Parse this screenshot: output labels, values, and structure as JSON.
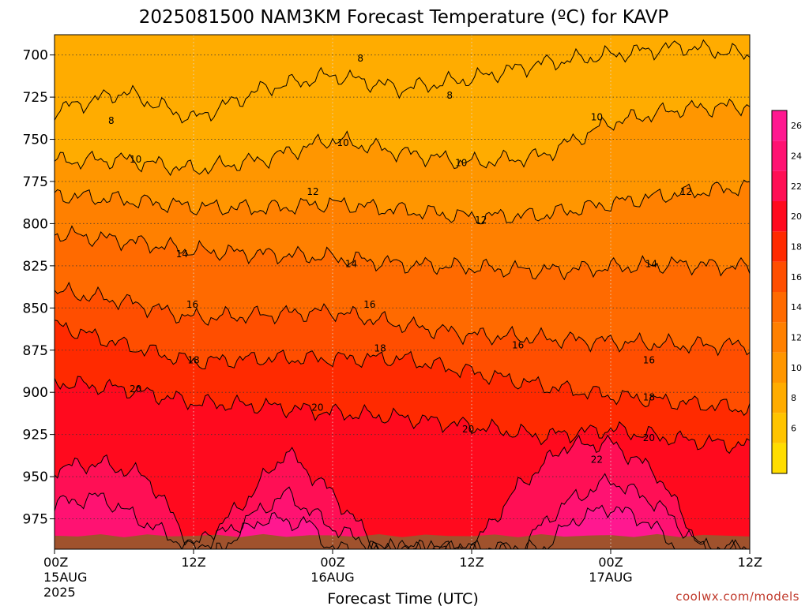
{
  "title": "2025081500 NAM3KM Forecast Temperature (ºC) for KAVP",
  "xlabel": "Forecast Time (UTC)",
  "credit": "coolwx.com/models",
  "chart_data": {
    "type": "heatmap",
    "title": "2025081500 NAM3KM Forecast Temperature (ºC) for KAVP",
    "xlabel": "Forecast Time (UTC)",
    "ylabel": "",
    "x_ticks": [
      {
        "hour": 0,
        "line1": "00Z",
        "line2": "15AUG",
        "line3": "2025"
      },
      {
        "hour": 12,
        "line1": "12Z",
        "line2": "",
        "line3": ""
      },
      {
        "hour": 24,
        "line1": "00Z",
        "line2": "16AUG",
        "line3": ""
      },
      {
        "hour": 36,
        "line1": "12Z",
        "line2": "",
        "line3": ""
      },
      {
        "hour": 48,
        "line1": "00Z",
        "line2": "17AUG",
        "line3": ""
      },
      {
        "hour": 60,
        "line1": "12Z",
        "line2": "",
        "line3": ""
      }
    ],
    "xlim": [
      0,
      60
    ],
    "y_ticks": [
      700,
      725,
      750,
      775,
      800,
      825,
      850,
      875,
      900,
      925,
      950,
      975
    ],
    "ylim_hpa": [
      688,
      993
    ],
    "grid": true,
    "colorbar": {
      "levels": [
        4,
        6,
        8,
        10,
        12,
        14,
        16,
        18,
        20,
        22,
        24,
        26,
        28
      ],
      "tick_labels": [
        "6",
        "8",
        "10",
        "12",
        "14",
        "16",
        "18",
        "20",
        "22",
        "24",
        "26"
      ],
      "colors": [
        "#ffdd00",
        "#ffc400",
        "#ffac00",
        "#ff9600",
        "#ff8000",
        "#ff6a00",
        "#ff4e00",
        "#ff2a00",
        "#ff0a1e",
        "#ff0f55",
        "#ff1272",
        "#ff1890"
      ],
      "placement": "right"
    },
    "isotherms_hpa": [
      {
        "temp": 8,
        "hours": [
          0,
          6,
          12,
          18,
          24,
          30,
          36,
          42,
          48,
          54,
          60
        ],
        "p": [
          733,
          722,
          738,
          720,
          712,
          720,
          714,
          705,
          700,
          695,
          700
        ]
      },
      {
        "temp": 10,
        "hours": [
          0,
          6,
          12,
          18,
          24,
          30,
          36,
          42,
          48,
          54,
          60
        ],
        "p": [
          763,
          762,
          768,
          762,
          750,
          758,
          764,
          760,
          740,
          732,
          730
        ]
      },
      {
        "temp": 12,
        "hours": [
          0,
          6,
          12,
          18,
          24,
          30,
          36,
          42,
          48,
          54,
          60
        ],
        "p": [
          783,
          786,
          790,
          791,
          788,
          792,
          796,
          795,
          788,
          782,
          778
        ]
      },
      {
        "temp": 14,
        "hours": [
          0,
          6,
          12,
          18,
          24,
          30,
          36,
          42,
          48,
          54,
          60
        ],
        "p": [
          806,
          810,
          816,
          818,
          820,
          824,
          826,
          828,
          826,
          824,
          826
        ]
      },
      {
        "temp": 16,
        "hours": [
          0,
          6,
          12,
          18,
          24,
          30,
          36,
          42,
          48,
          54,
          60
        ],
        "p": [
          840,
          846,
          856,
          854,
          852,
          860,
          866,
          868,
          870,
          872,
          872
        ]
      },
      {
        "temp": 18,
        "hours": [
          0,
          6,
          12,
          18,
          24,
          30,
          36,
          42,
          48,
          54,
          60
        ],
        "p": [
          860,
          872,
          882,
          880,
          880,
          880,
          888,
          896,
          902,
          906,
          910
        ]
      },
      {
        "temp": 20,
        "hours": [
          0,
          6,
          12,
          18,
          24,
          30,
          36,
          42,
          48,
          54,
          60
        ],
        "p": [
          894,
          898,
          906,
          908,
          912,
          915,
          920,
          926,
          922,
          928,
          932
        ]
      },
      {
        "temp": 22,
        "hours": [
          0,
          4,
          8,
          12,
          16,
          20,
          24,
          28,
          32,
          36,
          40,
          44,
          48,
          52,
          56,
          60
        ],
        "p": [
          945,
          942,
          950,
          992,
          968,
          935,
          960,
          993,
          993,
          993,
          956,
          932,
          930,
          948,
          993,
          993
        ]
      },
      {
        "temp": 24,
        "hours": [
          0,
          4,
          8,
          12,
          16,
          20,
          24,
          28,
          32,
          40,
          44,
          48,
          52,
          56,
          60
        ],
        "p": [
          966,
          962,
          978,
          993,
          978,
          960,
          980,
          993,
          993,
          993,
          966,
          952,
          966,
          993,
          993
        ]
      },
      {
        "temp": 26,
        "hours": [
          14,
          18,
          22,
          24,
          42,
          45,
          48,
          51,
          54
        ],
        "p": [
          993,
          975,
          978,
          993,
          993,
          975,
          968,
          976,
          993
        ]
      }
    ],
    "contour_labels": [
      {
        "text": "8",
        "hour": 4.9,
        "p": 739
      },
      {
        "text": "8",
        "hour": 26.4,
        "p": 702
      },
      {
        "text": "8",
        "hour": 34.1,
        "p": 724
      },
      {
        "text": "10",
        "hour": 7.0,
        "p": 762
      },
      {
        "text": "10",
        "hour": 24.9,
        "p": 752
      },
      {
        "text": "10",
        "hour": 35.1,
        "p": 764
      },
      {
        "text": "10",
        "hour": 46.8,
        "p": 737
      },
      {
        "text": "12",
        "hour": 22.3,
        "p": 781
      },
      {
        "text": "12",
        "hour": 36.8,
        "p": 798
      },
      {
        "text": "12",
        "hour": 54.5,
        "p": 781
      },
      {
        "text": "14",
        "hour": 11.0,
        "p": 818
      },
      {
        "text": "14",
        "hour": 25.6,
        "p": 824
      },
      {
        "text": "14",
        "hour": 51.5,
        "p": 824
      },
      {
        "text": "16",
        "hour": 11.9,
        "p": 848
      },
      {
        "text": "16",
        "hour": 27.2,
        "p": 848
      },
      {
        "text": "16",
        "hour": 40.0,
        "p": 872
      },
      {
        "text": "16",
        "hour": 51.3,
        "p": 881
      },
      {
        "text": "18",
        "hour": 12.0,
        "p": 881
      },
      {
        "text": "18",
        "hour": 28.1,
        "p": 874
      },
      {
        "text": "18",
        "hour": 51.3,
        "p": 903
      },
      {
        "text": "20",
        "hour": 7.0,
        "p": 898
      },
      {
        "text": "20",
        "hour": 22.7,
        "p": 909
      },
      {
        "text": "20",
        "hour": 35.7,
        "p": 922
      },
      {
        "text": "20",
        "hour": 51.3,
        "p": 927
      },
      {
        "text": "22",
        "hour": 46.8,
        "p": 940
      }
    ],
    "ground_hpa": 985
  }
}
